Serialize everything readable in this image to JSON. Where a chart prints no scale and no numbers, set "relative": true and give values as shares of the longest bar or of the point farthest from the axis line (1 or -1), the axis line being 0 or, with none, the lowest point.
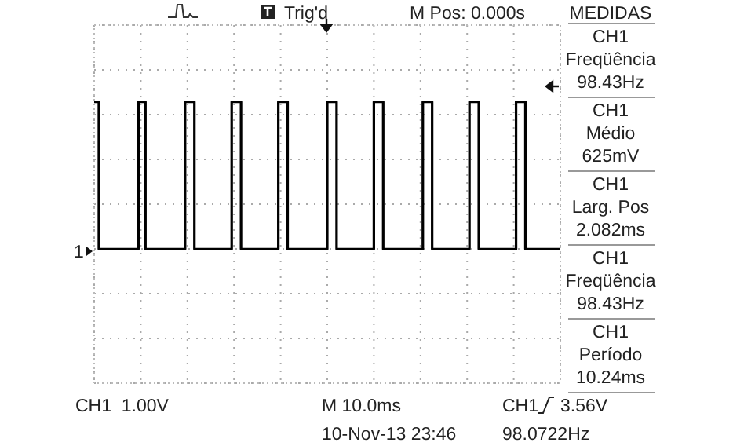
{
  "chart_data": {
    "type": "step",
    "relative": true,
    "grid": true,
    "categories": [
      null,
      null,
      null,
      null,
      null,
      null,
      null,
      null,
      null,
      null,
      null,
      null,
      null,
      null,
      null,
      null,
      null,
      null,
      null,
      null,
      null,
      null,
      null,
      null,
      null,
      null,
      null,
      null,
      null,
      null,
      null,
      null,
      null,
      null,
      null,
      null,
      null,
      null,
      null,
      null,
      null,
      null,
      null,
      null,
      null,
      null,
      null,
      null,
      null,
      null,
      null,
      null,
      null,
      null,
      null,
      null,
      null,
      null,
      null,
      null,
      null,
      null,
      null,
      null,
      null,
      null,
      null,
      null,
      null,
      null,
      null,
      null,
      null,
      null,
      null,
      null,
      null,
      null,
      null,
      null,
      null,
      null,
      null,
      null,
      null,
      null,
      null,
      null,
      null,
      null,
      null,
      null,
      null,
      null,
      null,
      null,
      null,
      null,
      null,
      null,
      null,
      null,
      null,
      null,
      null,
      null,
      null,
      null,
      null,
      null,
      null,
      null,
      null,
      null,
      null,
      null,
      null,
      null,
      null,
      null,
      null,
      null,
      null,
      null,
      null,
      null,
      null,
      null,
      null,
      null,
      null,
      null,
      null,
      null,
      null,
      null,
      null,
      null,
      null,
      null,
      null,
      null,
      null,
      null,
      null,
      null,
      null,
      null,
      null,
      null,
      null,
      null,
      null,
      null,
      null,
      null,
      null,
      null,
      null,
      null,
      null,
      null,
      null,
      null,
      null,
      null,
      null,
      null,
      null,
      null,
      null,
      null,
      null,
      null,
      null,
      null,
      null,
      null,
      null,
      null,
      null,
      null,
      null,
      null,
      null,
      null,
      null,
      null,
      null,
      null,
      null,
      null,
      null,
      null,
      null,
      null,
      null,
      null,
      null,
      null,
      null
    ],
    "series": [
      {
        "color": "#000000",
        "values": [
          1,
          1,
          0,
          0,
          0,
          0,
          0,
          0,
          0,
          0,
          0,
          0,
          0,
          0,
          0,
          0,
          0,
          0,
          0,
          1,
          1,
          1,
          0,
          0,
          0,
          0,
          0,
          0,
          0,
          0,
          0,
          0,
          0,
          0,
          0,
          0,
          0,
          0,
          0,
          1,
          1,
          1,
          1,
          0,
          0,
          0,
          0,
          0,
          0,
          0,
          0,
          0,
          0,
          0,
          0,
          0,
          0,
          0,
          0,
          1,
          1,
          1,
          1,
          0,
          0,
          0,
          0,
          0,
          0,
          0,
          0,
          0,
          0,
          0,
          0,
          0,
          0,
          0,
          0,
          1,
          1,
          1,
          1,
          0,
          0,
          0,
          0,
          0,
          0,
          0,
          0,
          0,
          0,
          0,
          0,
          0,
          0,
          0,
          0,
          0,
          1,
          1,
          1,
          1,
          0,
          0,
          0,
          0,
          0,
          0,
          0,
          0,
          0,
          0,
          0,
          0,
          0,
          0,
          0,
          0,
          1,
          1,
          1,
          1,
          0,
          0,
          0,
          0,
          0,
          0,
          0,
          0,
          0,
          0,
          0,
          0,
          0,
          0,
          0,
          0,
          0,
          1,
          1,
          1,
          1,
          0,
          0,
          0,
          0,
          0,
          0,
          0,
          0,
          0,
          0,
          0,
          0,
          0,
          0,
          0,
          0,
          1,
          1,
          1,
          1,
          0,
          0,
          0,
          0,
          0,
          0,
          0,
          0,
          0,
          0,
          0,
          0,
          0,
          0,
          0,
          0,
          1,
          1,
          1,
          1,
          0,
          0,
          0,
          0,
          0,
          0,
          0,
          0,
          0,
          0,
          0,
          0,
          0,
          0,
          0,
          0
        ]
      }
    ],
    "annotations": [
      "Trig'd",
      "M Pos: 0.000s",
      "MEDIDAS",
      "CH1",
      "Freqüência",
      "98.43Hz",
      "CH1",
      "Médio",
      "625mV",
      "CH1",
      "Larg. Pos",
      "2.082ms",
      "CH1",
      "Freqüência",
      "98.43Hz",
      "CH1",
      "Período",
      "10.24ms",
      "CH1  1.00V",
      "M 10.0ms",
      "10-Nov-13 23:46",
      "CH1",
      "3.56V",
      "98.0722Hz",
      "1"
    ]
  }
}
